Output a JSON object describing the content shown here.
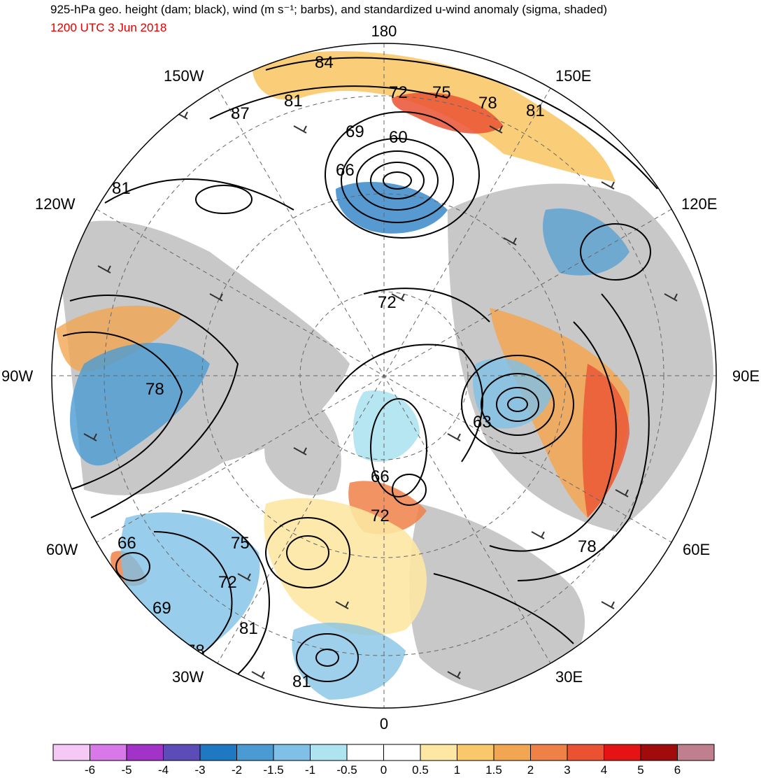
{
  "title": "925-hPa geo. height (dam; black), wind (m s⁻¹; barbs), and standardized u-wind anomaly (sigma, shaded)",
  "datetime": "1200 UTC 3 Jun 2018",
  "longitude_labels": {
    "top": "180",
    "bottom": "0",
    "left": "90W",
    "right": "90E",
    "upper_left_1": "150W",
    "upper_left_2": "120W",
    "upper_right_1": "150E",
    "upper_right_2": "120E",
    "lower_left_1": "60W",
    "lower_left_2": "30W",
    "lower_right_1": "60E",
    "lower_right_2": "30E"
  },
  "contour_labels": [
    "84",
    "81",
    "87",
    "72",
    "75",
    "78",
    "81",
    "69",
    "60",
    "66",
    "81",
    "72",
    "78",
    "63",
    "66",
    "72",
    "78",
    "66",
    "75",
    "72",
    "69",
    "81",
    "78",
    "81"
  ],
  "colorbar": {
    "labels": [
      "-6",
      "-5",
      "-4",
      "-3",
      "-2",
      "-1.5",
      "-1",
      "-0.5",
      "0",
      "0.5",
      "1",
      "1.5",
      "2",
      "3",
      "4",
      "5",
      "6"
    ],
    "colors": [
      "#f6c8f6",
      "#d978e8",
      "#a232c8",
      "#5b4cb8",
      "#1f78c2",
      "#4a9bd3",
      "#7ec0e6",
      "#aee3f0",
      "#ffffff",
      "#ffffff",
      "#fde7a2",
      "#f9c86a",
      "#f3a651",
      "#ef8046",
      "#ea5232",
      "#e51313",
      "#a10b0b",
      "#c07f8c"
    ]
  },
  "map_colors": {
    "land": "#c8c8c8",
    "ocean": "#ffffff",
    "contour": "#000000",
    "grid": "#666666"
  }
}
